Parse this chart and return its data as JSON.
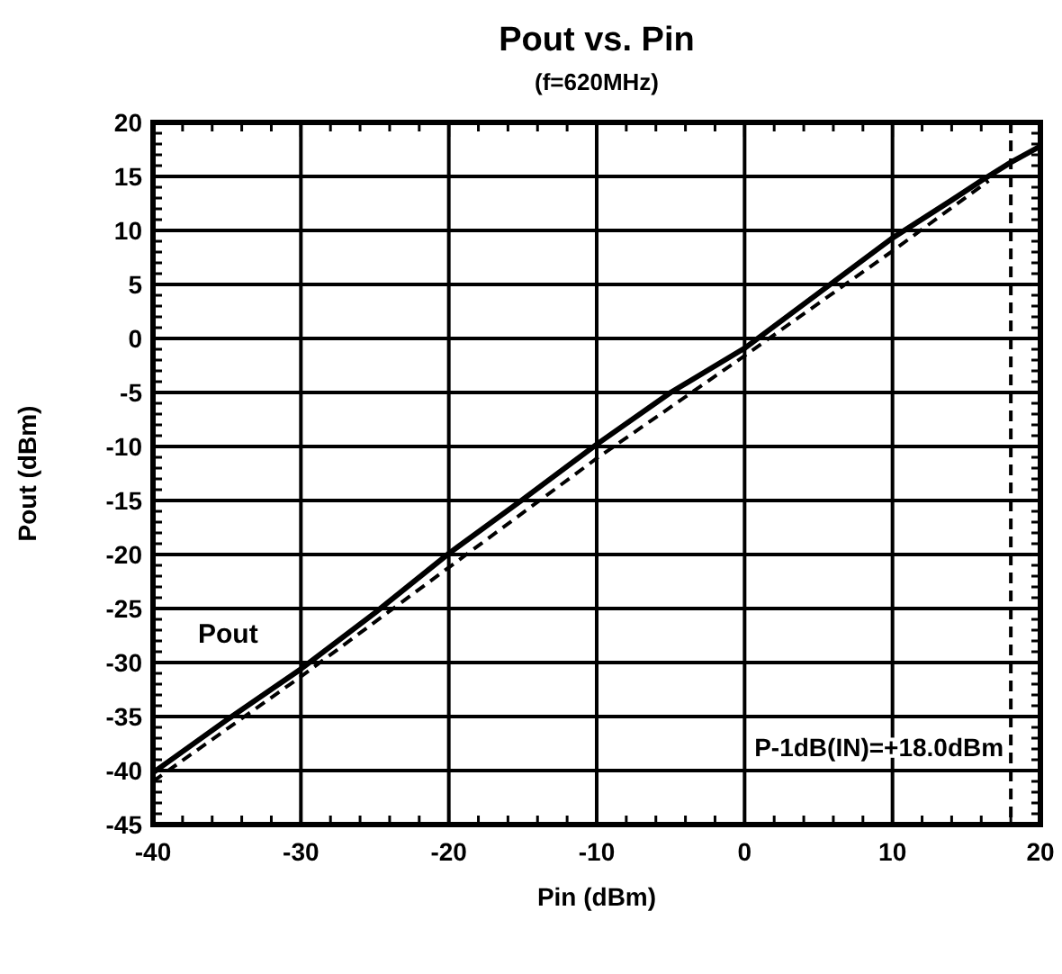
{
  "chart_data": {
    "type": "line",
    "title": "Pout vs. Pin",
    "subtitle": "(f=620MHz)",
    "xlabel": "Pin (dBm)",
    "ylabel": "Pout (dBm)",
    "xlim": [
      -40,
      20
    ],
    "ylim": [
      -45,
      20
    ],
    "xticks": [
      -40,
      {
        "value": -38,
        "label": null
      },
      {
        "value": -36,
        "label": null
      },
      {
        "value": -34,
        "label": null
      },
      {
        "value": -32,
        "label": null
      },
      -30,
      {
        "value": -28,
        "label": null
      },
      {
        "value": -26,
        "label": null
      },
      {
        "value": -24,
        "label": null
      },
      {
        "value": -22,
        "label": null
      },
      -20,
      {
        "value": -18,
        "label": null
      },
      {
        "value": -16,
        "label": null
      },
      {
        "value": -14,
        "label": null
      },
      {
        "value": -12,
        "label": null
      },
      -10,
      {
        "value": -8,
        "label": null
      },
      {
        "value": -6,
        "label": null
      },
      {
        "value": -4,
        "label": null
      },
      {
        "value": -2,
        "label": null
      },
      0,
      {
        "value": 2,
        "label": null
      },
      {
        "value": 4,
        "label": null
      },
      {
        "value": 6,
        "label": null
      },
      {
        "value": 8,
        "label": null
      },
      10,
      {
        "value": 12,
        "label": null
      },
      {
        "value": 14,
        "label": null
      },
      {
        "value": 16,
        "label": null
      },
      {
        "value": 18,
        "label": null
      },
      20
    ],
    "yticks": [
      -45,
      -40,
      -35,
      -30,
      -25,
      -20,
      -15,
      -10,
      -5,
      0,
      5,
      10,
      15,
      20
    ],
    "grid": true,
    "legend": false,
    "series": [
      {
        "name": "Pout",
        "color": "#000000",
        "line_style": "solid",
        "x": [
          -40,
          -35,
          -30,
          -25,
          -20,
          -15,
          -10,
          -5,
          0,
          5,
          10,
          14,
          16,
          18,
          20
        ],
        "values": [
          -40.2,
          -35.3,
          -30.6,
          -25.4,
          -19.9,
          -14.9,
          -9.8,
          -5.0,
          -0.9,
          4.2,
          9.3,
          12.8,
          14.6,
          16.3,
          17.8
        ]
      },
      {
        "color": "#000000",
        "line_style": "dashed",
        "x": [
          -40,
          -30,
          -20,
          -10,
          0,
          10,
          16.5
        ],
        "values": [
          -41,
          -31.3,
          -21.2,
          -11.1,
          -1.6,
          8.1,
          14.6
        ]
      }
    ],
    "ref_lines": [
      {
        "axis": "x",
        "value": 18,
        "label": "P-1dB(IN)=+18.0dBm",
        "color": "#000000",
        "line_style": "dashed"
      }
    ]
  }
}
